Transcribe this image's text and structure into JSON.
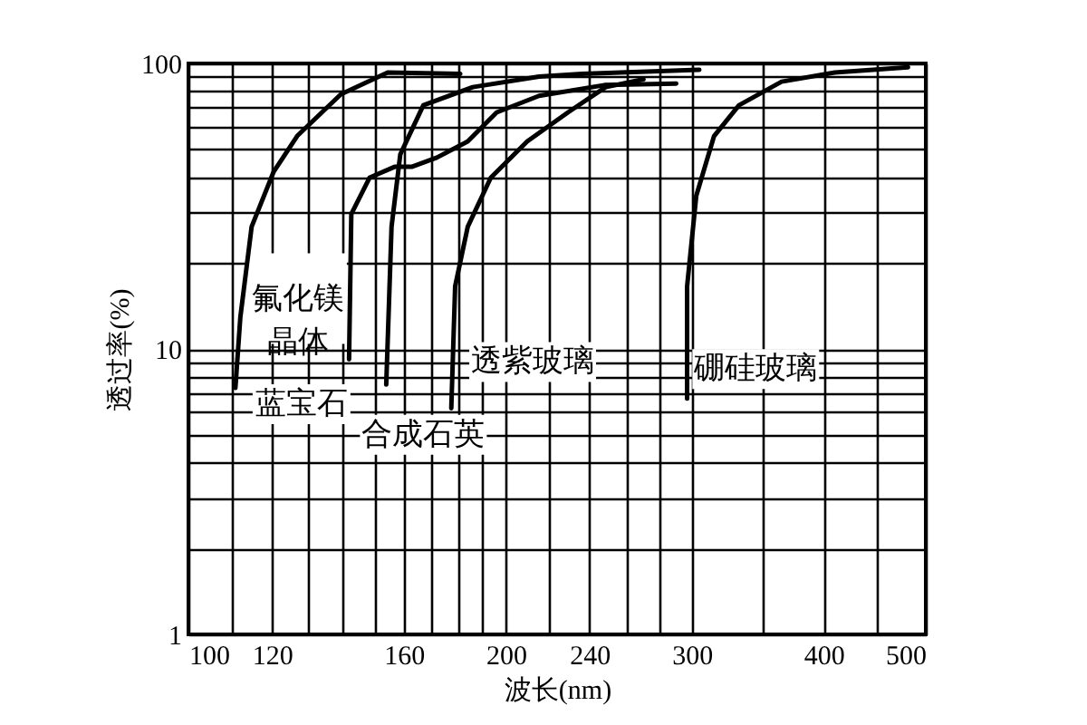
{
  "chart_data": {
    "type": "line",
    "xlabel": "波长(nm)",
    "ylabel": "透过率(%)",
    "log": "xy",
    "grid": true,
    "line_style": "solid",
    "marker": "none",
    "xlim": [
      100,
      500
    ],
    "ylim": [
      1,
      100
    ],
    "xticks": [
      100,
      {
        "value": 110,
        "label": null
      },
      120,
      {
        "value": 130,
        "label": null
      },
      {
        "value": 140,
        "label": null
      },
      {
        "value": 150,
        "label": null
      },
      160,
      {
        "value": 170,
        "label": null
      },
      {
        "value": 180,
        "label": null
      },
      {
        "value": 190,
        "label": null
      },
      200,
      {
        "value": 220,
        "label": null
      },
      240,
      {
        "value": 260,
        "label": null
      },
      {
        "value": 280,
        "label": null
      },
      300,
      {
        "value": 350,
        "label": null
      },
      400,
      {
        "value": 450,
        "label": null
      },
      500
    ],
    "yticks": [
      1,
      {
        "value": 2,
        "label": null
      },
      {
        "value": 3,
        "label": null
      },
      {
        "value": 4,
        "label": null
      },
      {
        "value": 5,
        "label": null
      },
      {
        "value": 6,
        "label": null
      },
      {
        "value": 7,
        "label": null
      },
      {
        "value": 8,
        "label": null
      },
      {
        "value": 9,
        "label": null
      },
      10,
      {
        "value": 20,
        "label": null
      },
      {
        "value": 30,
        "label": null
      },
      {
        "value": 40,
        "label": null
      },
      {
        "value": 50,
        "label": null
      },
      {
        "value": 60,
        "label": null
      },
      {
        "value": 70,
        "label": null
      },
      {
        "value": 80,
        "label": null
      },
      {
        "value": 90,
        "label": null
      },
      100
    ],
    "series": [
      {
        "name": "氟化镁晶体",
        "color": "#000000",
        "x": [
          110.8,
          112,
          114.8,
          120.4,
          126.8,
          139.5,
          154.5,
          181
        ],
        "values": [
          7.3,
          12.9,
          26.8,
          41.6,
          55.7,
          78,
          93,
          92
        ]
      },
      {
        "name": "蓝宝石",
        "color": "#000000",
        "x": [
          142,
          142.7,
          148.5,
          157,
          163,
          172,
          184,
          196,
          215,
          248,
          290
        ],
        "values": [
          9.2,
          29.7,
          39.8,
          43.5,
          43.5,
          46.8,
          53.3,
          67.4,
          77,
          84,
          85
        ]
      },
      {
        "name": "合成石英",
        "color": "#000000",
        "x": [
          154,
          155.8,
          158.8,
          167,
          186,
          215,
          236,
          305
        ],
        "values": [
          7.5,
          26.8,
          48,
          71.4,
          82.6,
          90,
          92,
          95
        ]
      },
      {
        "name": "透紫玻璃",
        "color": "#000000",
        "x": [
          177.5,
          179,
          184,
          193.5,
          209.5,
          229,
          248.6,
          270
        ],
        "values": [
          6.2,
          16.6,
          26.8,
          39.8,
          53.3,
          67.4,
          82.6,
          88
        ]
      },
      {
        "name": "硼硅玻璃",
        "color": "#000000",
        "x": [
          297,
          297,
          303,
          315,
          332.6,
          365,
          410,
          481
        ],
        "values": [
          6.7,
          16.6,
          34.4,
          55.7,
          71.4,
          86.3,
          93,
          97
        ]
      }
    ]
  }
}
